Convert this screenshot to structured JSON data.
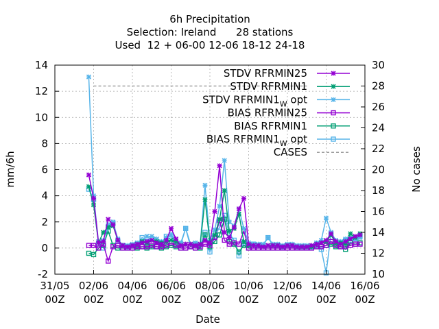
{
  "chart_data": {
    "type": "line",
    "title_lines": [
      "6h Precipitation",
      "Selection: Ireland      28 stations",
      "Used  12 + 06-00 12-06 18-12 24-18"
    ],
    "xlabel": "Date",
    "ylabel": "mm/6h",
    "y2label": "No cases",
    "xlim": [
      0,
      16
    ],
    "ylim": [
      -2,
      14
    ],
    "y2lim": [
      10,
      30
    ],
    "grid": true,
    "legend_position": "top-right",
    "x_ticks": [
      {
        "x": 0,
        "line1": "31/05",
        "line2": "00Z"
      },
      {
        "x": 2,
        "line1": "02/06",
        "line2": "00Z"
      },
      {
        "x": 4,
        "line1": "04/06",
        "line2": "00Z"
      },
      {
        "x": 6,
        "line1": "06/06",
        "line2": "00Z"
      },
      {
        "x": 8,
        "line1": "08/06",
        "line2": "00Z"
      },
      {
        "x": 10,
        "line1": "10/06",
        "line2": "00Z"
      },
      {
        "x": 12,
        "line1": "12/06",
        "line2": "00Z"
      },
      {
        "x": 14,
        "line1": "14/06",
        "line2": "00Z"
      },
      {
        "x": 16,
        "line1": "16/06",
        "line2": "00Z"
      }
    ],
    "y_ticks": [
      -2,
      0,
      2,
      4,
      6,
      8,
      10,
      12,
      14
    ],
    "y2_ticks": [
      10,
      12,
      14,
      16,
      18,
      20,
      22,
      24,
      26,
      28,
      30
    ],
    "x": [
      1.75,
      2.0,
      2.25,
      2.5,
      2.75,
      3.0,
      3.25,
      3.5,
      3.75,
      4.0,
      4.25,
      4.5,
      4.75,
      5.0,
      5.25,
      5.5,
      5.75,
      6.0,
      6.25,
      6.5,
      6.75,
      7.0,
      7.25,
      7.5,
      7.75,
      8.0,
      8.25,
      8.5,
      8.75,
      9.0,
      9.25,
      9.5,
      9.75,
      10.0,
      10.25,
      10.5,
      10.75,
      11.0,
      11.25,
      11.5,
      11.75,
      12.0,
      12.25,
      12.5,
      12.75,
      13.0,
      13.25,
      13.5,
      13.75,
      14.0,
      14.25,
      14.5,
      14.75,
      15.0,
      15.25,
      15.5,
      15.75
    ],
    "series": [
      {
        "name": "STDV RFRMIN25",
        "color": "#9400d3",
        "marker": "x",
        "axis": "y",
        "values": [
          5.6,
          3.8,
          0.4,
          0.5,
          2.2,
          1.8,
          0.6,
          0.2,
          0.1,
          0.2,
          0.3,
          0.4,
          0.5,
          0.6,
          0.4,
          0.3,
          0.6,
          1.5,
          0.7,
          0.2,
          0.3,
          0.3,
          0.2,
          0.3,
          0.6,
          0.4,
          2.8,
          6.3,
          1.2,
          0.8,
          1.6,
          3.0,
          3.8,
          0.3,
          0.2,
          0.2,
          0.1,
          0.2,
          0.2,
          0.2,
          0.1,
          0.2,
          0.2,
          0.1,
          0.1,
          0.1,
          0.2,
          0.3,
          0.4,
          0.6,
          1.1,
          0.5,
          0.3,
          0.5,
          0.7,
          0.9,
          1.0
        ]
      },
      {
        "name": "STDV RFRMIN1",
        "color": "#009e73",
        "marker": "x",
        "axis": "y",
        "values": [
          4.7,
          3.3,
          0.4,
          1.2,
          1.6,
          1.7,
          0.6,
          0.2,
          0.1,
          0.2,
          0.3,
          0.5,
          0.4,
          0.6,
          0.5,
          0.4,
          0.5,
          0.6,
          0.5,
          0.2,
          0.3,
          0.3,
          0.2,
          0.3,
          3.7,
          0.4,
          1.0,
          2.2,
          4.4,
          1.3,
          1.5,
          2.6,
          0.5,
          0.2,
          0.2,
          0.2,
          0.1,
          0.2,
          0.2,
          0.2,
          0.1,
          0.2,
          0.2,
          0.1,
          0.1,
          0.1,
          0.1,
          0.3,
          0.4,
          0.5,
          1.0,
          0.4,
          0.4,
          0.3,
          1.1,
          0.8,
          1.1
        ]
      },
      {
        "name": "STDV RFRMIN1 W opt",
        "color": "#56b4e9",
        "marker": "x",
        "axis": "y",
        "values": [
          13.1,
          4.0,
          0.5,
          0.6,
          1.8,
          2.0,
          0.7,
          0.2,
          0.2,
          0.3,
          0.4,
          0.5,
          0.9,
          0.9,
          0.7,
          0.5,
          0.8,
          1.0,
          0.5,
          0.4,
          1.5,
          0.3,
          0.4,
          0.3,
          4.8,
          0.6,
          1.4,
          3.2,
          6.7,
          2.0,
          1.7,
          3.0,
          1.5,
          0.4,
          0.3,
          0.3,
          0.3,
          0.8,
          0.3,
          0.3,
          0.2,
          0.3,
          0.3,
          0.2,
          0.2,
          0.2,
          0.2,
          0.4,
          0.6,
          2.3,
          1.2,
          0.6,
          0.5,
          0.7,
          0.8,
          0.7,
          0.8
        ]
      },
      {
        "name": "BIAS RFRMIN25",
        "color": "#9400d3",
        "marker": "square",
        "axis": "y",
        "values": [
          0.2,
          0.2,
          0.0,
          0.3,
          -1.0,
          0.1,
          0.2,
          0.0,
          0.0,
          0.0,
          0.1,
          0.1,
          0.1,
          0.2,
          0.1,
          0.1,
          0.2,
          0.4,
          0.2,
          0.0,
          0.0,
          0.1,
          0.0,
          0.1,
          0.3,
          0.2,
          0.8,
          2.1,
          0.6,
          0.3,
          0.4,
          0.3,
          1.3,
          0.0,
          0.0,
          0.0,
          0.0,
          0.0,
          0.0,
          0.0,
          0.0,
          0.0,
          0.0,
          0.0,
          0.0,
          0.0,
          0.0,
          0.1,
          0.1,
          0.2,
          0.5,
          0.2,
          0.1,
          0.1,
          0.2,
          0.3,
          0.3
        ]
      },
      {
        "name": "BIAS RFRMIN1",
        "color": "#009e73",
        "marker": "square",
        "axis": "y",
        "values": [
          -0.4,
          -0.5,
          0.0,
          0.2,
          1.3,
          0.2,
          0.0,
          0.0,
          0.0,
          0.0,
          0.0,
          0.1,
          0.0,
          0.1,
          0.1,
          0.0,
          0.1,
          0.2,
          0.1,
          0.0,
          0.0,
          0.1,
          0.0,
          0.0,
          1.0,
          0.1,
          0.5,
          1.0,
          2.2,
          0.5,
          0.3,
          -0.3,
          0.2,
          0.0,
          0.0,
          0.0,
          0.0,
          0.0,
          0.0,
          0.0,
          0.0,
          0.0,
          0.0,
          0.0,
          0.0,
          0.0,
          0.0,
          0.1,
          0.1,
          0.2,
          0.3,
          0.1,
          0.1,
          -0.1,
          0.4,
          0.3,
          0.4
        ]
      },
      {
        "name": "BIAS RFRMIN1 W opt",
        "color": "#56b4e9",
        "marker": "square",
        "axis": "y",
        "values": [
          4.5,
          3.7,
          0.3,
          0.0,
          1.6,
          1.9,
          0.5,
          0.2,
          0.1,
          0.2,
          0.3,
          0.8,
          0.5,
          0.7,
          0.4,
          0.3,
          0.9,
          1.0,
          0.2,
          0.3,
          1.5,
          0.1,
          0.3,
          0.2,
          1.2,
          -0.3,
          0.9,
          1.6,
          2.5,
          1.1,
          0.6,
          -0.6,
          0.4,
          0.2,
          0.3,
          0.2,
          0.2,
          0.8,
          0.2,
          0.2,
          0.1,
          0.2,
          0.2,
          0.1,
          0.1,
          0.1,
          0.1,
          0.2,
          -0.1,
          -1.9,
          1.1,
          0.4,
          0.4,
          0.6,
          0.6,
          0.7,
          0.9
        ]
      },
      {
        "name": "CASES",
        "color": "#a0a0a0",
        "marker": "none",
        "dash": true,
        "axis": "y2",
        "points": [
          [
            2.0,
            28
          ],
          [
            11.5,
            28
          ],
          [
            13.0,
            28
          ]
        ]
      }
    ],
    "legend": [
      {
        "label": "STDV RFRMIN25",
        "sub": "",
        "tail": "",
        "series": 0
      },
      {
        "label": "STDV RFRMIN1",
        "sub": "",
        "tail": "",
        "series": 1
      },
      {
        "label": "STDV RFRMIN1",
        "sub": "W",
        "tail": " opt",
        "series": 2
      },
      {
        "label": "BIAS RFRMIN25",
        "sub": "",
        "tail": "",
        "series": 3
      },
      {
        "label": "BIAS RFRMIN1",
        "sub": "",
        "tail": "",
        "series": 4
      },
      {
        "label": "BIAS RFRMIN1",
        "sub": "W",
        "tail": " opt",
        "series": 5
      },
      {
        "label": "CASES",
        "sub": "",
        "tail": "",
        "series": 6
      }
    ]
  }
}
